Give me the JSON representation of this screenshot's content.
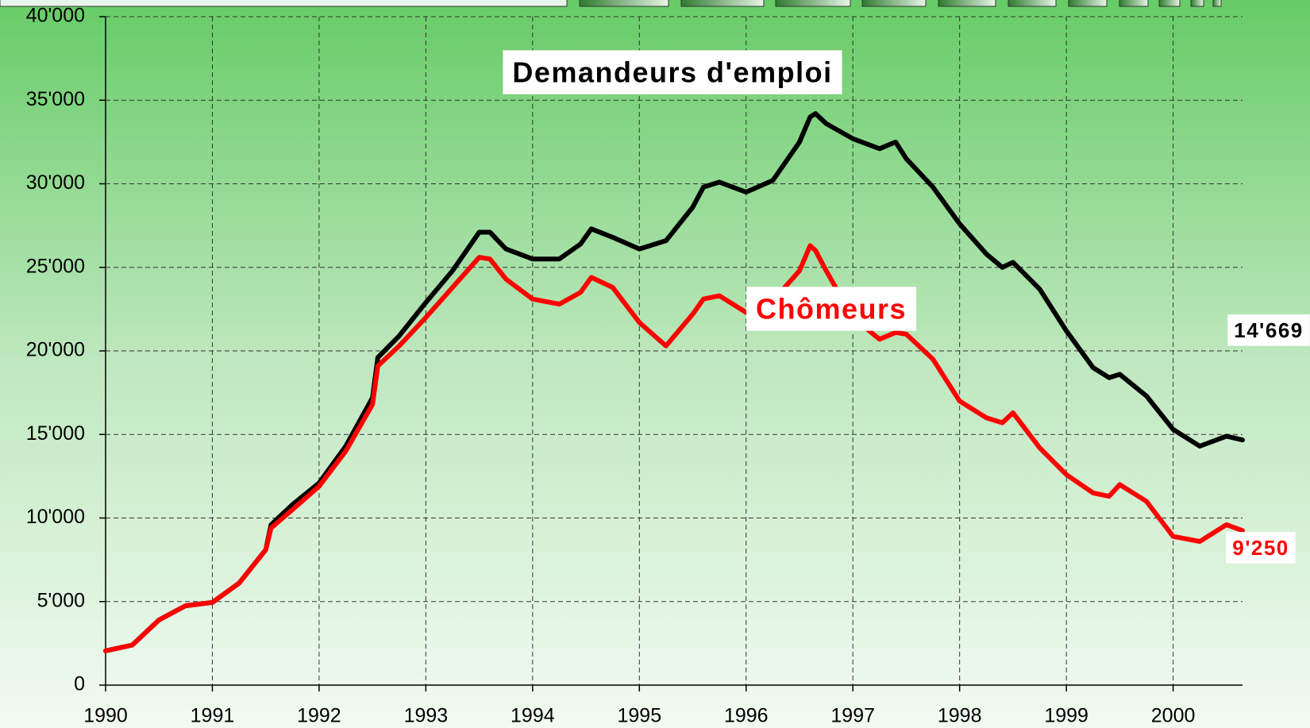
{
  "chart_data": {
    "type": "line",
    "x": [
      1990.0,
      1990.25,
      1990.5,
      1990.75,
      1991.0,
      1991.25,
      1991.5,
      1991.55,
      1991.75,
      1992.0,
      1992.25,
      1992.5,
      1992.55,
      1992.75,
      1993.0,
      1993.25,
      1993.5,
      1993.6,
      1993.75,
      1994.0,
      1994.25,
      1994.45,
      1994.55,
      1994.75,
      1995.0,
      1995.25,
      1995.5,
      1995.6,
      1995.75,
      1996.0,
      1996.25,
      1996.5,
      1996.6,
      1996.65,
      1996.75,
      1997.0,
      1997.25,
      1997.4,
      1997.5,
      1997.75,
      1998.0,
      1998.25,
      1998.4,
      1998.5,
      1998.75,
      1999.0,
      1999.25,
      1999.4,
      1999.5,
      1999.75,
      2000.0,
      2000.25,
      2000.5,
      2000.65
    ],
    "series": [
      {
        "name": "Demandeurs d'emploi",
        "color": "#000000",
        "values": [
          2050,
          2400,
          3900,
          4750,
          4950,
          6100,
          8100,
          9600,
          10800,
          12100,
          14300,
          17200,
          19600,
          20900,
          22900,
          24800,
          27100,
          27100,
          26100,
          25500,
          25500,
          26400,
          27300,
          26800,
          26100,
          26600,
          28600,
          29800,
          30100,
          29500,
          30200,
          32500,
          34000,
          34200,
          33600,
          32700,
          32100,
          32500,
          31500,
          29800,
          27600,
          25800,
          25000,
          25300,
          23700,
          21200,
          19000,
          18400,
          18600,
          17300,
          15300,
          14300,
          14900,
          14669
        ],
        "value_labels": [
          null,
          null,
          null,
          null,
          null,
          null,
          null,
          null,
          null,
          null,
          null,
          null,
          null,
          null,
          null,
          null,
          null,
          null,
          null,
          null,
          null,
          null,
          null,
          null,
          null,
          null,
          null,
          null,
          null,
          null,
          null,
          null,
          null,
          null,
          null,
          null,
          null,
          null,
          null,
          null,
          null,
          null,
          null,
          null,
          null,
          null,
          null,
          null,
          null,
          null,
          null,
          null,
          null,
          "14'669"
        ]
      },
      {
        "name": "Chômeurs",
        "color": "#ff0000",
        "values": [
          2050,
          2400,
          3900,
          4750,
          4950,
          6100,
          8100,
          9400,
          10500,
          11900,
          14000,
          16800,
          19100,
          20300,
          22000,
          23800,
          25600,
          25500,
          24300,
          23100,
          22800,
          23500,
          24400,
          23800,
          21700,
          20300,
          22200,
          23100,
          23300,
          22300,
          23000,
          24800,
          26300,
          26000,
          24800,
          22000,
          20700,
          21100,
          21000,
          19500,
          17000,
          16000,
          15700,
          16300,
          14200,
          12600,
          11500,
          11300,
          12000,
          11000,
          8900,
          8600,
          9600,
          9250
        ],
        "value_labels": [
          null,
          null,
          null,
          null,
          null,
          null,
          null,
          null,
          null,
          null,
          null,
          null,
          null,
          null,
          null,
          null,
          null,
          null,
          null,
          null,
          null,
          null,
          null,
          null,
          null,
          null,
          null,
          null,
          null,
          null,
          null,
          null,
          null,
          null,
          null,
          null,
          null,
          null,
          null,
          null,
          null,
          null,
          null,
          null,
          null,
          null,
          null,
          null,
          null,
          null,
          null,
          null,
          null,
          "9'250"
        ]
      }
    ],
    "xlim": [
      1990,
      2000.65
    ],
    "xticks": [
      1990,
      1991,
      1992,
      1993,
      1994,
      1995,
      1996,
      1997,
      1998,
      1999,
      2000
    ],
    "ylim": [
      0,
      40000
    ],
    "yticks": [
      {
        "value": 0,
        "label": "0"
      },
      {
        "value": 5000,
        "label": "5'000"
      },
      {
        "value": 10000,
        "label": "10'000"
      },
      {
        "value": 15000,
        "label": "15'000"
      },
      {
        "value": 20000,
        "label": "20'000"
      },
      {
        "value": 25000,
        "label": "25'000"
      },
      {
        "value": 30000,
        "label": "30'000"
      },
      {
        "value": 35000,
        "label": "35'000"
      },
      {
        "value": 40000,
        "label": "40'000"
      }
    ],
    "grid": true
  }
}
